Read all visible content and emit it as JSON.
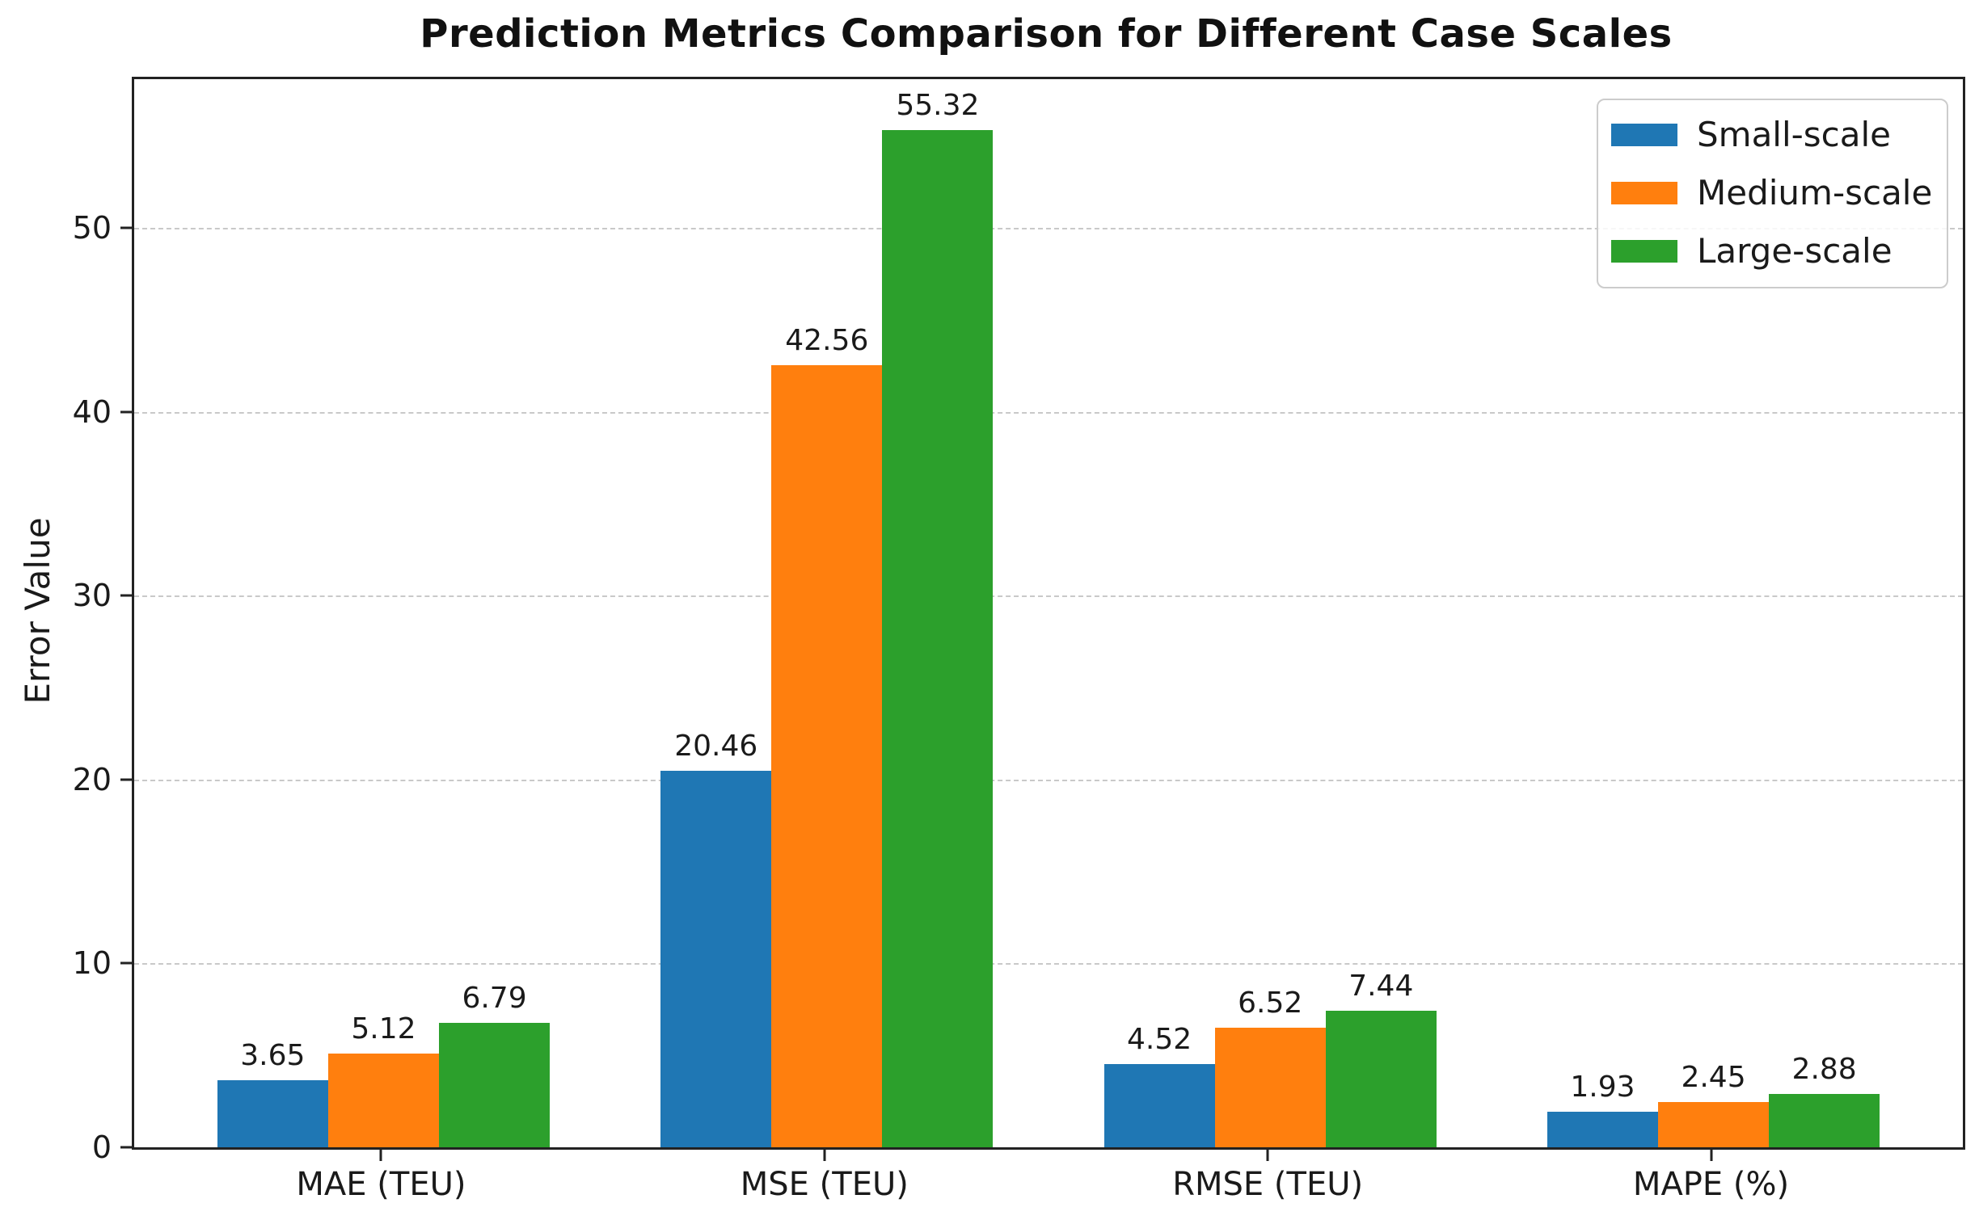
{
  "chart_data": {
    "type": "bar",
    "title": "Prediction Metrics Comparison for Different Case Scales",
    "xlabel": "",
    "ylabel": "Error Value",
    "categories": [
      "MAE (TEU)",
      "MSE (TEU)",
      "RMSE (TEU)",
      "MAPE (%)"
    ],
    "series": [
      {
        "name": "Small-scale",
        "color": "#1f77b4",
        "values": [
          3.65,
          20.46,
          4.52,
          1.93
        ]
      },
      {
        "name": "Medium-scale",
        "color": "#ff7f0e",
        "values": [
          5.12,
          42.56,
          6.52,
          2.45
        ]
      },
      {
        "name": "Large-scale",
        "color": "#2ca02c",
        "values": [
          6.79,
          55.32,
          7.44,
          2.88
        ]
      }
    ],
    "value_labels": [
      [
        "3.65",
        "20.46",
        "4.52",
        "1.93"
      ],
      [
        "5.12",
        "42.56",
        "6.52",
        "2.45"
      ],
      [
        "6.79",
        "55.32",
        "7.44",
        "2.88"
      ]
    ],
    "yticks": [
      0,
      10,
      20,
      30,
      40,
      50
    ],
    "ylim": [
      0,
      58.1
    ],
    "grid": "horizontal-dashed",
    "gridline_color": "#c9c9c9",
    "legend_position": "upper right",
    "axis_color": "#222222",
    "text_color": "#1a1a1a"
  }
}
